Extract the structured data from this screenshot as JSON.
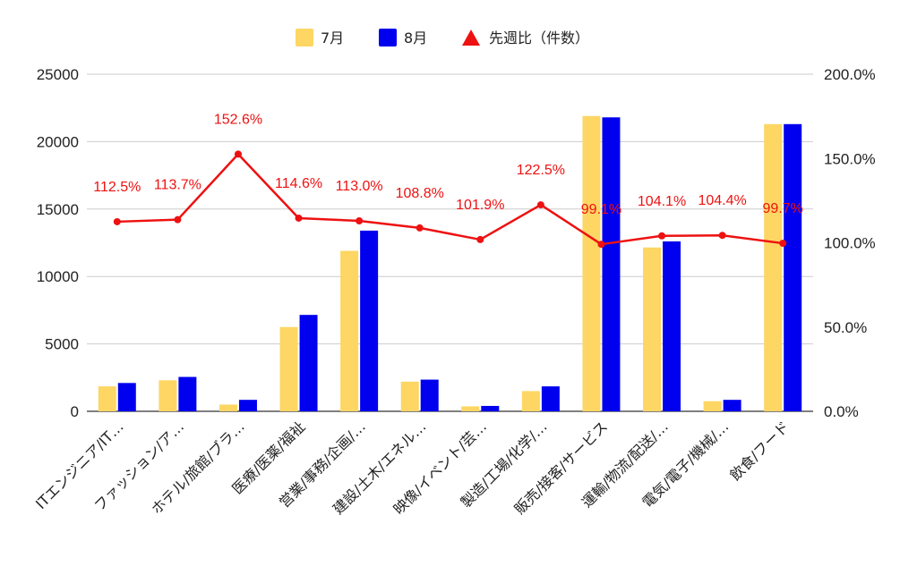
{
  "chart_data": {
    "type": "bar",
    "categories": [
      "ITエンジニア/IT…",
      "ファッション/ア…",
      "ホテル/旅館/ブラ…",
      "医療/医薬/福祉",
      "営業/事務/企画/…",
      "建設/土木/エネル…",
      "映像/イベント/芸…",
      "製造/工場/化学/…",
      "販売/接客/サービス",
      "運輸/物流/配送/…",
      "電気/電子/機械/…",
      "飲食/フード"
    ],
    "series": [
      {
        "name": "7月",
        "type": "bar",
        "axis": "left",
        "color": "#fdd663",
        "values": [
          1850,
          2300,
          500,
          6250,
          11900,
          2200,
          370,
          1500,
          21900,
          12150,
          750,
          21300
        ]
      },
      {
        "name": "8月",
        "type": "bar",
        "axis": "left",
        "color": "#0000ee",
        "values": [
          2100,
          2550,
          850,
          7150,
          13400,
          2350,
          400,
          1850,
          21800,
          12600,
          850,
          21300
        ]
      },
      {
        "name": "先週比（件数）",
        "type": "line",
        "axis": "right",
        "color": "#ee1111",
        "values": [
          112.5,
          113.7,
          152.6,
          114.6,
          113.0,
          108.8,
          101.9,
          122.5,
          99.1,
          104.1,
          104.4,
          99.7
        ],
        "labels": [
          "112.5%",
          "113.7%",
          "152.6%",
          "114.6%",
          "113.0%",
          "108.8%",
          "101.9%",
          "122.5%",
          "99.1%",
          "104.1%",
          "104.4%",
          "99.7%"
        ]
      }
    ],
    "y_left": {
      "min": 0,
      "max": 25000,
      "ticks": [
        "0",
        "5000",
        "10000",
        "15000",
        "20000",
        "25000"
      ]
    },
    "y_right": {
      "min": 0,
      "max": 200,
      "ticks": [
        "0.0%",
        "50.0%",
        "100.0%",
        "150.0%",
        "200.0%"
      ]
    },
    "grid": true,
    "legend": "top-center"
  }
}
